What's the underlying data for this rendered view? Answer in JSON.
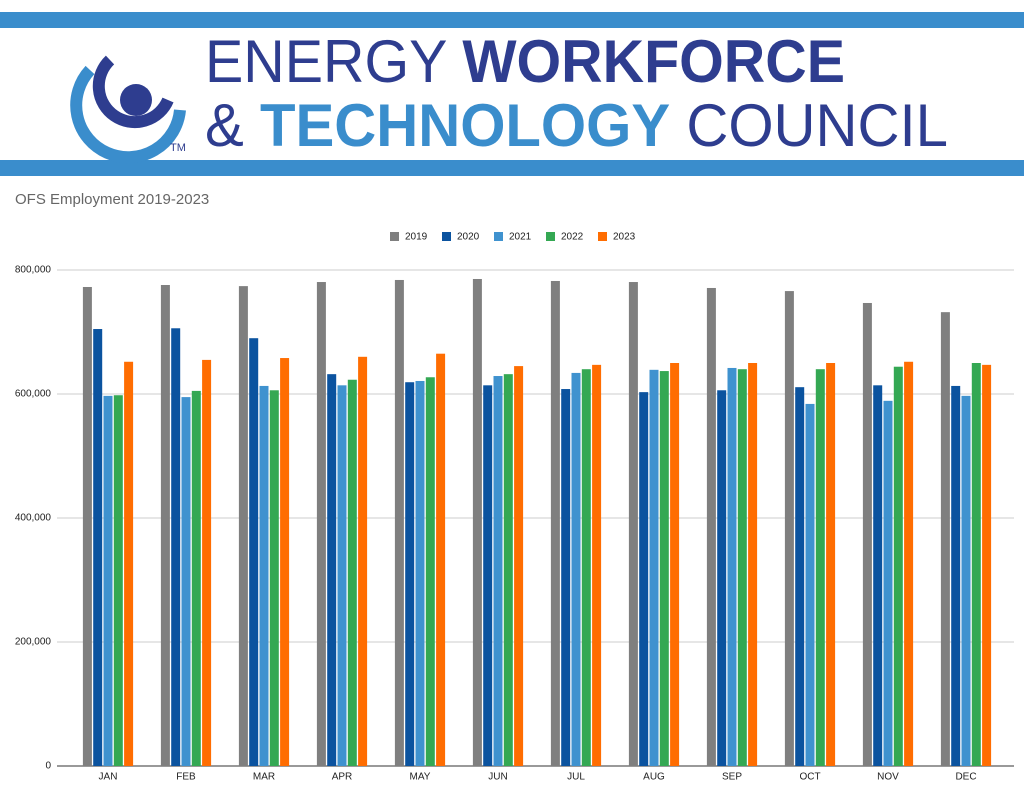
{
  "header": {
    "line1": [
      "ENERGY",
      "WORKFORCE"
    ],
    "line2": [
      "&",
      "TECHNOLOGY",
      "COUNCIL"
    ],
    "trademark": "TM"
  },
  "chart_data": {
    "type": "bar",
    "title": "OFS Employment 2019-2023",
    "categories": [
      "JAN",
      "FEB",
      "MAR",
      "APR",
      "MAY",
      "JUN",
      "JUL",
      "AUG",
      "SEP",
      "OCT",
      "NOV",
      "DEC"
    ],
    "series": [
      {
        "name": "2019",
        "color": "#7f7f7f",
        "values": [
          772600,
          775800,
          774000,
          780600,
          783900,
          785500,
          782300,
          780600,
          771000,
          766000,
          746800,
          732000
        ]
      },
      {
        "name": "2020",
        "color": "#0b539f",
        "values": [
          704800,
          706000,
          690000,
          632000,
          619000,
          614000,
          608000,
          603000,
          606000,
          611000,
          614000,
          613000
        ]
      },
      {
        "name": "2021",
        "color": "#3f92cf",
        "values": [
          597000,
          595000,
          613000,
          614000,
          621000,
          629000,
          634000,
          639000,
          642000,
          584000,
          589000,
          597000
        ]
      },
      {
        "name": "2022",
        "color": "#34a853",
        "values": [
          598000,
          605000,
          606000,
          623000,
          627000,
          632000,
          640000,
          637000,
          640000,
          640000,
          644000,
          650000
        ]
      },
      {
        "name": "2023",
        "color": "#ff6d01",
        "values": [
          652000,
          655000,
          658000,
          660000,
          665000,
          645000,
          647000,
          650000,
          650000,
          650000,
          652000,
          647000
        ]
      }
    ],
    "ylim": [
      0,
      800000
    ],
    "yticks": [
      0,
      {
        "value": 200000,
        "label": "200,000"
      },
      {
        "value": 400000,
        "label": "400,000"
      },
      {
        "value": 600000,
        "label": "600,000"
      },
      {
        "value": 800000,
        "label": "800,000"
      }
    ],
    "grid": true,
    "legend": "top"
  }
}
